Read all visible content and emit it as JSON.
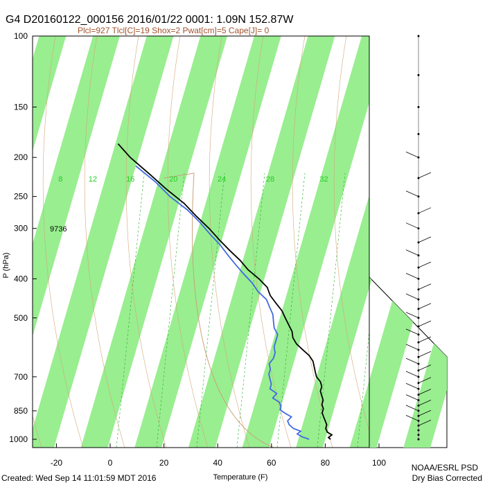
{
  "header": {
    "title": "G4 D20160122_000156 2016/01/22 0001:  1.09N 152.87W",
    "subtitle": "Plcl=927 Tlcl[C]=19 Shox=2 Pwat[cm]=5 Cape[J]= 0"
  },
  "footer": {
    "created": "Created: Wed Sep 14 11:01:59 MDT 2016",
    "org_line1": "NOAA/ESRL PSD",
    "org_line2": "Dry Bias Corrected"
  },
  "chart_data": {
    "type": "line",
    "title": "G4 D20160122_000156 2016/01/22 0001:  1.09N 152.87W",
    "xlabel": "Temperature (F)",
    "ylabel": "P (hPa)",
    "xlim": [
      -28,
      100
    ],
    "ylim": [
      1000,
      100
    ],
    "yscale": "log",
    "x_ticks": [
      "-20",
      "0",
      "20",
      "40",
      "60",
      "80",
      "100"
    ],
    "x_tick_values": [
      -20,
      0,
      20,
      40,
      60,
      80,
      100
    ],
    "y_ticks": [
      "100",
      "150",
      "200",
      "250",
      "300",
      "400",
      "500",
      "700",
      "850",
      "1000"
    ],
    "y_tick_values": [
      100,
      150,
      200,
      250,
      300,
      400,
      500,
      700,
      850,
      1000
    ],
    "height_annotation": {
      "pressure": 300,
      "text": "9736"
    },
    "mixing_ratio_labels": [
      {
        "text": "8",
        "x": -36
      },
      {
        "text": "12",
        "x": -24
      },
      {
        "text": "16",
        "x": -10
      },
      {
        "text": "20",
        "x": 6
      },
      {
        "text": "24",
        "x": 24
      },
      {
        "text": "28",
        "x": 42
      },
      {
        "text": "32",
        "x": 62
      }
    ],
    "series": [
      {
        "name": "Temperature",
        "color": "#000000",
        "points": [
          [
            1000,
            82
          ],
          [
            990,
            81
          ],
          [
            975,
            82
          ],
          [
            960,
            80
          ],
          [
            940,
            79
          ],
          [
            920,
            79
          ],
          [
            900,
            78
          ],
          [
            880,
            77
          ],
          [
            860,
            76
          ],
          [
            840,
            76
          ],
          [
            820,
            75
          ],
          [
            800,
            75
          ],
          [
            780,
            74
          ],
          [
            760,
            73
          ],
          [
            740,
            73
          ],
          [
            720,
            72
          ],
          [
            700,
            70
          ],
          [
            680,
            69
          ],
          [
            660,
            68
          ],
          [
            640,
            67
          ],
          [
            620,
            65
          ],
          [
            600,
            62
          ],
          [
            580,
            59
          ],
          [
            560,
            57
          ],
          [
            540,
            56
          ],
          [
            520,
            54
          ],
          [
            500,
            52
          ],
          [
            480,
            50
          ],
          [
            460,
            47
          ],
          [
            440,
            44
          ],
          [
            420,
            42
          ],
          [
            400,
            38
          ],
          [
            380,
            33
          ],
          [
            360,
            29
          ],
          [
            340,
            24
          ],
          [
            320,
            19
          ],
          [
            300,
            14
          ],
          [
            280,
            8
          ],
          [
            260,
            2
          ],
          [
            240,
            -6
          ],
          [
            220,
            -14
          ],
          [
            200,
            -23
          ],
          [
            185,
            -29
          ]
        ]
      },
      {
        "name": "Dewpoint",
        "color": "#4169e1",
        "points": [
          [
            1000,
            74
          ],
          [
            985,
            71
          ],
          [
            970,
            69
          ],
          [
            955,
            70
          ],
          [
            940,
            67
          ],
          [
            920,
            65
          ],
          [
            900,
            64
          ],
          [
            880,
            65
          ],
          [
            860,
            62
          ],
          [
            845,
            60
          ],
          [
            830,
            60
          ],
          [
            810,
            59
          ],
          [
            790,
            56
          ],
          [
            770,
            57
          ],
          [
            750,
            54
          ],
          [
            730,
            54
          ],
          [
            710,
            53
          ],
          [
            690,
            52
          ],
          [
            670,
            52
          ],
          [
            650,
            51
          ],
          [
            630,
            52
          ],
          [
            610,
            52
          ],
          [
            590,
            51
          ],
          [
            570,
            51
          ],
          [
            550,
            51
          ],
          [
            530,
            49
          ],
          [
            510,
            48
          ],
          [
            490,
            47
          ],
          [
            470,
            45
          ],
          [
            450,
            43
          ],
          [
            430,
            39
          ],
          [
            410,
            36
          ],
          [
            390,
            32
          ],
          [
            370,
            28
          ],
          [
            350,
            24
          ],
          [
            330,
            20
          ],
          [
            310,
            15
          ],
          [
            290,
            10
          ],
          [
            270,
            4
          ],
          [
            250,
            -4
          ],
          [
            230,
            -11
          ],
          [
            210,
            -20
          ]
        ]
      }
    ]
  }
}
